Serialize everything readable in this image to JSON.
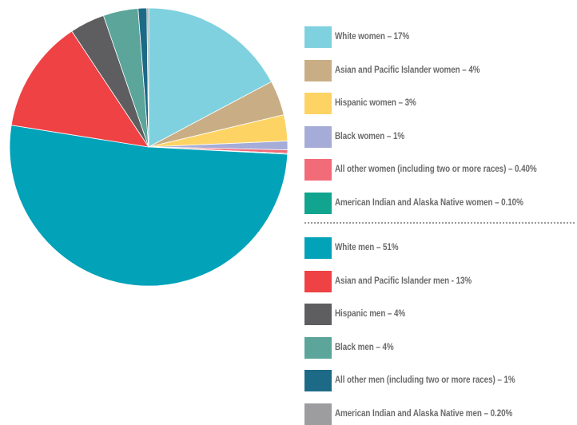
{
  "chart_data": {
    "type": "pie",
    "slices": [
      {
        "label": "White women – 17%",
        "value": 17,
        "color": "#7fd1df"
      },
      {
        "label": "Asian and Pacific Islander women – 4%",
        "value": 4,
        "color": "#c9ae85"
      },
      {
        "label": "Hispanic women – 3%",
        "value": 3,
        "color": "#fdd464"
      },
      {
        "label": "Black women – 1%",
        "value": 1,
        "color": "#a6acd8"
      },
      {
        "label": "All other women (including two or more races) – 0.40%",
        "value": 0.4,
        "color": "#f26b78"
      },
      {
        "label": "American Indian and Alaska Native women – 0.10%",
        "value": 0.1,
        "color": "#11a48f"
      },
      {
        "label": "White men – 51%",
        "value": 51,
        "color": "#02a2b9"
      },
      {
        "label": "Asian and Pacific Islander men - 13%",
        "value": 13,
        "color": "#ef4244"
      },
      {
        "label": "Hispanic men – 4%",
        "value": 4,
        "color": "#5e5e61"
      },
      {
        "label": "Black men – 4%",
        "value": 4,
        "color": "#5ba59b"
      },
      {
        "label": "All other men (including two or more races) – 1%",
        "value": 1,
        "color": "#1d6a87"
      },
      {
        "label": "American Indian and Alaska Native men – 0.20%",
        "value": 0.2,
        "color": "#9d9d9f"
      }
    ],
    "start_angle_deg": 0,
    "direction": "clockwise",
    "legend_position": "right",
    "legend_divider_after": 6
  }
}
